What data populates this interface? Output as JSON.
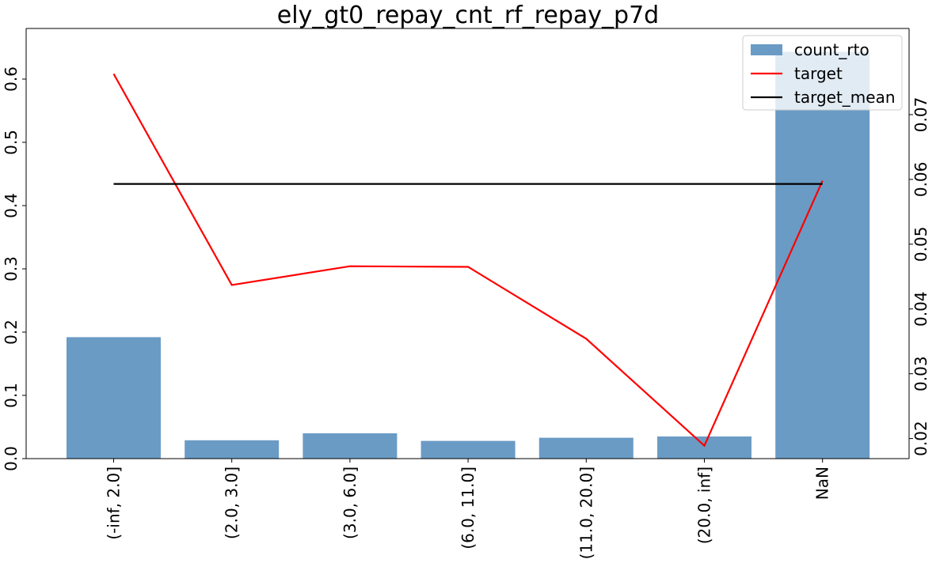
{
  "chart_data": {
    "type": "bar",
    "title": "ely_gt0_repay_cnt_rf_repay_p7d",
    "xlabel": "",
    "ylabel": "",
    "categories": [
      "(-inf, 2.0]",
      "(2.0, 3.0]",
      "(3.0, 6.0]",
      "(6.0, 11.0]",
      "(11.0, 20.0]",
      "(20.0, inf]",
      "NaN"
    ],
    "series": [
      {
        "name": "count_rto",
        "type": "bar",
        "axis": "left",
        "color": "#6a9bc5",
        "values": [
          0.192,
          0.029,
          0.04,
          0.028,
          0.033,
          0.035,
          0.643
        ]
      },
      {
        "name": "target",
        "type": "line",
        "axis": "right",
        "color": "#ff0000",
        "values": [
          0.0763,
          0.0437,
          0.0466,
          0.0465,
          0.0354,
          0.0189,
          0.0598
        ]
      },
      {
        "name": "target_mean",
        "type": "line",
        "axis": "right",
        "color": "#000000",
        "values": [
          0.0593,
          0.0593,
          0.0593,
          0.0593,
          0.0593,
          0.0593,
          0.0593
        ]
      }
    ],
    "ylim_left": [
      0,
      0.68
    ],
    "ylim_right": [
      0.0169,
      0.0833
    ],
    "yticks_left": [
      "0.0",
      "0.1",
      "0.2",
      "0.3",
      "0.4",
      "0.5",
      "0.6"
    ],
    "yticks_right": [
      "0.02",
      "0.03",
      "0.04",
      "0.05",
      "0.06",
      "0.07"
    ],
    "legend": {
      "position": "top-right",
      "entries": [
        "count_rto",
        "target",
        "target_mean"
      ]
    },
    "grid": false
  }
}
